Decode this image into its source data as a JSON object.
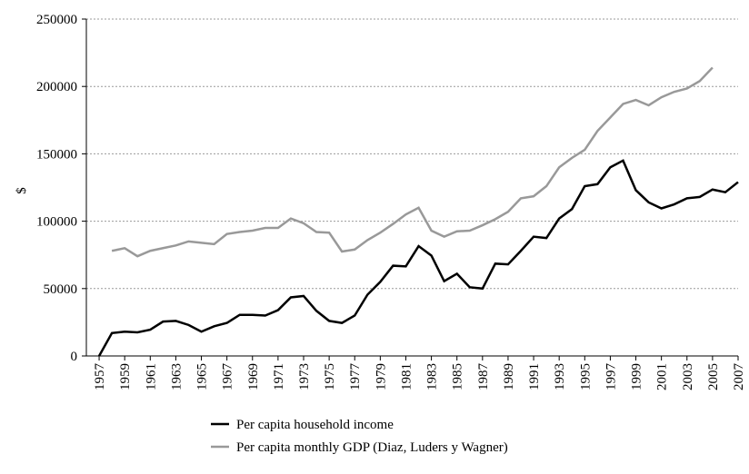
{
  "chart_data": {
    "type": "line",
    "y_label": "$",
    "x": [
      1957,
      1958,
      1959,
      1960,
      1961,
      1962,
      1963,
      1964,
      1965,
      1966,
      1967,
      1968,
      1969,
      1970,
      1971,
      1972,
      1973,
      1974,
      1975,
      1976,
      1977,
      1978,
      1979,
      1980,
      1981,
      1982,
      1983,
      1984,
      1985,
      1986,
      1987,
      1988,
      1989,
      1990,
      1991,
      1992,
      1993,
      1994,
      1995,
      1996,
      1997,
      1998,
      1999,
      2000,
      2001,
      2002,
      2003,
      2004,
      2005,
      2006,
      2007
    ],
    "series": [
      {
        "name": "Per capita household income",
        "color": "#000000",
        "values": [
          0,
          17000,
          18000,
          17500,
          19500,
          25500,
          26000,
          23000,
          18000,
          22000,
          24500,
          30500,
          30500,
          30000,
          34000,
          43500,
          44500,
          33500,
          26000,
          24500,
          30000,
          45500,
          55000,
          67000,
          66500,
          81500,
          74500,
          55500,
          61000,
          51000,
          50000,
          68500,
          68000,
          78000,
          88500,
          87500,
          102000,
          109000,
          126000,
          127500,
          140000,
          145000,
          123000,
          114000,
          109500,
          112500,
          117000,
          118000,
          123500,
          121500,
          129000
        ]
      },
      {
        "name": "Per capita monthly GDP (Diaz, Luders y Wagner)",
        "color": "#999999",
        "values": [
          null,
          78000,
          80000,
          74000,
          78000,
          80000,
          82000,
          85000,
          84000,
          83000,
          90500,
          92000,
          93000,
          95000,
          95000,
          102000,
          98500,
          92000,
          91500,
          77500,
          79000,
          86000,
          91500,
          98000,
          105000,
          110000,
          93000,
          88500,
          92500,
          93000,
          97000,
          101500,
          107000,
          117000,
          118500,
          126000,
          140000,
          147000,
          153000,
          167000,
          177000,
          187000,
          190000,
          186000,
          192000,
          196000,
          198500,
          204000,
          214000,
          null,
          null
        ]
      }
    ],
    "xlim": [
      1956,
      2007
    ],
    "ylim": [
      0,
      250000
    ],
    "xticks": [
      1957,
      1959,
      1961,
      1963,
      1965,
      1967,
      1969,
      1971,
      1973,
      1975,
      1977,
      1979,
      1981,
      1983,
      1985,
      1987,
      1989,
      1991,
      1993,
      1995,
      1997,
      1999,
      2001,
      2003,
      2005,
      2007
    ],
    "yticks": [
      0,
      50000,
      100000,
      150000,
      200000,
      250000
    ],
    "grid": true
  }
}
